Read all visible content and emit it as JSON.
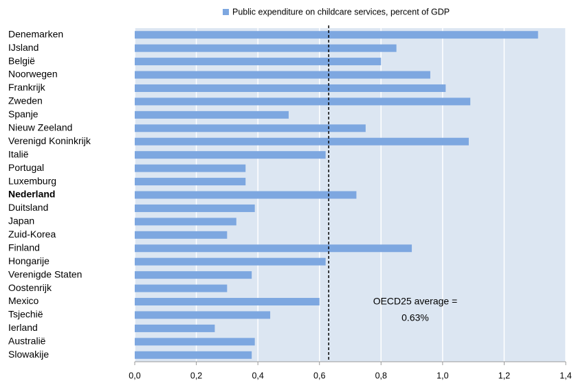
{
  "chart_data": {
    "type": "bar",
    "orientation": "horizontal",
    "categories": [
      "Denemarken",
      "IJsland",
      "België",
      "Noorwegen",
      "Frankrijk",
      "Zweden",
      "Spanje",
      "Nieuw Zeeland",
      "Verenigd Koninkrijk",
      "Italië",
      "Portugal",
      "Luxemburg",
      "Nederland",
      "Duitsland",
      "Japan",
      "Zuid-Korea",
      "Finland",
      "Hongarije",
      "Verenigde Staten",
      "Oostenrijk",
      "Mexico",
      "Tsjechië",
      "Ierland",
      "Australië",
      "Slowakije"
    ],
    "series": [
      {
        "name": "Public expenditure on childcare services, percent of GDP",
        "color": "#7da7e0",
        "values": [
          1.31,
          0.85,
          0.8,
          0.96,
          1.01,
          1.09,
          0.5,
          0.75,
          1.085,
          0.62,
          0.36,
          0.36,
          0.72,
          0.39,
          0.33,
          0.3,
          0.9,
          0.62,
          0.38,
          0.3,
          0.6,
          0.44,
          0.26,
          0.39,
          0.38
        ]
      }
    ],
    "highlight_category": "Nederland",
    "xlim": [
      0,
      1.4
    ],
    "xticks": [
      {
        "value": 0,
        "label": "0,0"
      },
      {
        "value": 0.2,
        "label": "0,2"
      },
      {
        "value": 0.4,
        "label": "0,4"
      },
      {
        "value": 0.6,
        "label": "0,6"
      },
      {
        "value": 0.8,
        "label": "0,8"
      },
      {
        "value": 1.0,
        "label": "1,0"
      },
      {
        "value": 1.2,
        "label": "1,2"
      },
      {
        "value": 1.4,
        "label": "1,4"
      }
    ],
    "grid": true,
    "legend_position": "top",
    "reference_line": {
      "value": 0.63,
      "label": "0.63%",
      "text": "OECD25 average ="
    }
  }
}
